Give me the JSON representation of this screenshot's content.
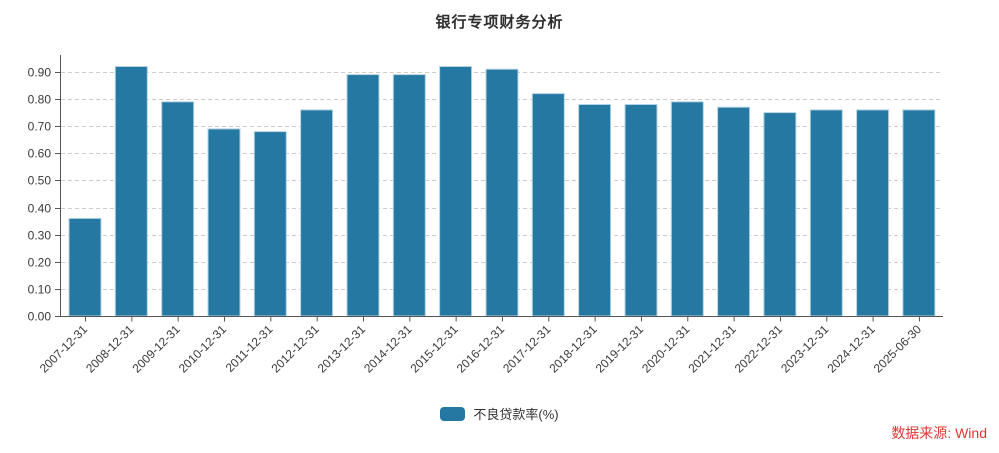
{
  "title": "银行专项财务分析",
  "legend": {
    "label": "不良贷款率(%)"
  },
  "source": {
    "text": "数据来源: Wind",
    "color": "#e13434"
  },
  "chart_data": {
    "type": "bar",
    "title": "银行专项财务分析",
    "categories": [
      "2007-12-31",
      "2008-12-31",
      "2009-12-31",
      "2010-12-31",
      "2011-12-31",
      "2012-12-31",
      "2013-12-31",
      "2014-12-31",
      "2015-12-31",
      "2016-12-31",
      "2017-12-31",
      "2018-12-31",
      "2019-12-31",
      "2020-12-31",
      "2021-12-31",
      "2022-12-31",
      "2023-12-31",
      "2024-12-31",
      "2025-06-30"
    ],
    "series": [
      {
        "name": "不良贷款率(%)",
        "values": [
          0.36,
          0.92,
          0.79,
          0.69,
          0.68,
          0.76,
          0.89,
          0.89,
          0.92,
          0.91,
          0.82,
          0.78,
          0.78,
          0.79,
          0.77,
          0.75,
          0.76,
          0.76,
          0.76
        ]
      }
    ],
    "xlabel": "",
    "ylabel": "",
    "ylim": [
      0,
      0.9
    ],
    "ytick_step": 0.1,
    "ytick_decimals": 2,
    "grid": "horizontal-dashed",
    "legend_position": "bottom",
    "bar_color": "#2578a2",
    "bar_border_color": "#b5d4e3",
    "axis_color": "#555555",
    "gridline_color": "#cccccc",
    "tick_label_color": "#3a3a3a"
  }
}
